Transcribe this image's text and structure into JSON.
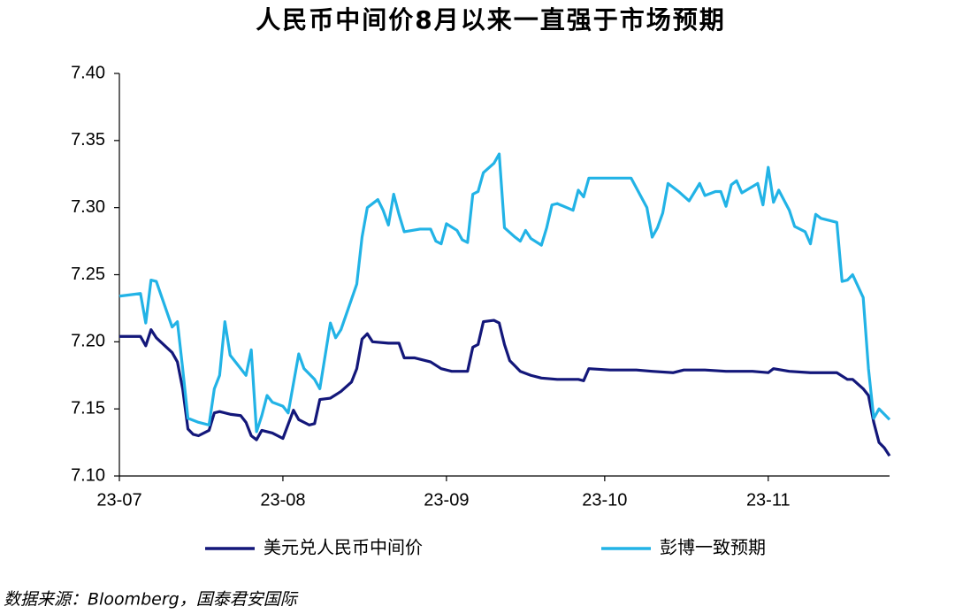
{
  "chart_data": {
    "type": "line",
    "title": "人民币中间价8月以来一直强于市场预期",
    "source": "数据来源：Bloomberg，国泰君安国际",
    "xlim": [
      0,
      146
    ],
    "xticks": [
      {
        "value": 0,
        "label": "23-07"
      },
      {
        "value": 31,
        "label": "23-08"
      },
      {
        "value": 62,
        "label": "23-09"
      },
      {
        "value": 92,
        "label": "23-10"
      },
      {
        "value": 123,
        "label": "23-11"
      }
    ],
    "ylim": [
      7.1,
      7.4
    ],
    "yticks": [
      {
        "value": 7.1,
        "label": "7.10"
      },
      {
        "value": 7.15,
        "label": "7.15"
      },
      {
        "value": 7.2,
        "label": "7.20"
      },
      {
        "value": 7.25,
        "label": "7.25"
      },
      {
        "value": 7.3,
        "label": "7.30"
      },
      {
        "value": 7.35,
        "label": "7.35"
      },
      {
        "value": 7.4,
        "label": "7.40"
      }
    ],
    "grid": false,
    "legend": "bottom",
    "series": [
      {
        "name": "美元兑人民币中间价",
        "color": "#13177a",
        "x": [
          0,
          4,
          5,
          6,
          7,
          10,
          11,
          12,
          13,
          14,
          15,
          17,
          18,
          19,
          21,
          23,
          24,
          25,
          26,
          27,
          29,
          31,
          33,
          34,
          36,
          37,
          38,
          40,
          42,
          44,
          45,
          46,
          47,
          48,
          51,
          53,
          54,
          56,
          59,
          61,
          63,
          66,
          67,
          68,
          69,
          71,
          72,
          73,
          74,
          75,
          76,
          78,
          80,
          83,
          87,
          88,
          89,
          93,
          98,
          101,
          105,
          107,
          111,
          115,
          120,
          123,
          124,
          127,
          131,
          136,
          138,
          139,
          141,
          142,
          143,
          144,
          145,
          146
        ],
        "values": [
          7.204,
          7.204,
          7.197,
          7.209,
          7.203,
          7.192,
          7.185,
          7.165,
          7.135,
          7.131,
          7.13,
          7.134,
          7.147,
          7.148,
          7.146,
          7.145,
          7.14,
          7.13,
          7.127,
          7.134,
          7.132,
          7.128,
          7.149,
          7.142,
          7.138,
          7.139,
          7.157,
          7.158,
          7.163,
          7.17,
          7.18,
          7.202,
          7.206,
          7.2,
          7.199,
          7.199,
          7.188,
          7.188,
          7.185,
          7.18,
          7.178,
          7.178,
          7.196,
          7.198,
          7.215,
          7.216,
          7.214,
          7.198,
          7.186,
          7.182,
          7.178,
          7.175,
          7.173,
          7.172,
          7.172,
          7.171,
          7.18,
          7.179,
          7.179,
          7.178,
          7.177,
          7.179,
          7.179,
          7.178,
          7.178,
          7.177,
          7.18,
          7.178,
          7.177,
          7.177,
          7.172,
          7.172,
          7.165,
          7.16,
          7.14,
          7.125,
          7.121,
          7.115
        ]
      },
      {
        "name": "彭博一致预期",
        "color": "#22b3e6",
        "x": [
          0,
          4,
          5,
          6,
          7,
          10,
          11,
          12,
          13,
          15,
          17,
          18,
          19,
          20,
          21,
          23,
          24,
          25,
          26,
          27,
          28,
          29,
          31,
          32,
          34,
          35,
          37,
          38,
          40,
          41,
          42,
          45,
          46,
          47,
          49,
          50,
          51,
          52,
          53,
          54,
          57,
          59,
          60,
          61,
          62,
          64,
          65,
          66,
          67,
          68,
          69,
          71,
          72,
          73,
          75,
          76,
          77,
          78,
          80,
          81,
          82,
          83,
          86,
          87,
          88,
          89,
          91,
          97,
          100,
          101,
          102,
          103,
          104,
          106,
          108,
          110,
          111,
          113,
          114,
          115,
          116,
          117,
          118,
          121,
          122,
          123,
          124,
          125,
          127,
          128,
          130,
          131,
          132,
          133,
          136,
          137,
          138,
          139,
          141,
          142,
          143,
          144,
          146
        ],
        "values": [
          7.234,
          7.236,
          7.214,
          7.246,
          7.245,
          7.211,
          7.215,
          7.18,
          7.143,
          7.14,
          7.138,
          7.165,
          7.175,
          7.215,
          7.19,
          7.18,
          7.175,
          7.194,
          7.133,
          7.145,
          7.16,
          7.155,
          7.152,
          7.147,
          7.191,
          7.18,
          7.172,
          7.165,
          7.214,
          7.203,
          7.209,
          7.243,
          7.278,
          7.3,
          7.306,
          7.298,
          7.287,
          7.31,
          7.295,
          7.282,
          7.284,
          7.284,
          7.275,
          7.273,
          7.288,
          7.283,
          7.276,
          7.274,
          7.31,
          7.312,
          7.326,
          7.333,
          7.34,
          7.285,
          7.278,
          7.275,
          7.283,
          7.277,
          7.272,
          7.285,
          7.302,
          7.303,
          7.298,
          7.313,
          7.308,
          7.322,
          7.322,
          7.322,
          7.3,
          7.278,
          7.285,
          7.296,
          7.318,
          7.312,
          7.305,
          7.318,
          7.309,
          7.312,
          7.312,
          7.301,
          7.317,
          7.32,
          7.311,
          7.318,
          7.302,
          7.33,
          7.304,
          7.313,
          7.298,
          7.286,
          7.282,
          7.273,
          7.295,
          7.292,
          7.289,
          7.245,
          7.246,
          7.25,
          7.233,
          7.18,
          7.143,
          7.15,
          7.142
        ]
      }
    ]
  }
}
